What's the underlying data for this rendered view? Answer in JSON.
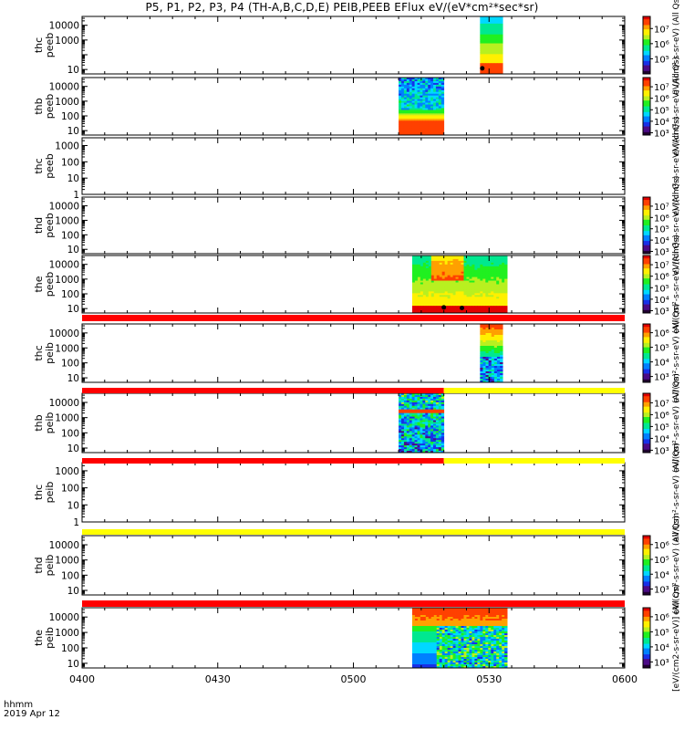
{
  "title": "P5, P1, P2, P3, P4 (TH-A,B,C,D,E) PEIB,PEEB EFlux eV/(eV*cm²*sec*sr)",
  "footer": {
    "time_label": "hhmm",
    "date_label": "2019 Apr 12"
  },
  "colors": {
    "colormap": [
      "#200030",
      "#4b0a86",
      "#1830e8",
      "#0080ff",
      "#00d8ff",
      "#00e890",
      "#20f020",
      "#b8f020",
      "#fff000",
      "#ffa000",
      "#ff4000",
      "#e00000"
    ],
    "flag_red": "#ff0000",
    "flag_yellow": "#ffff00"
  },
  "chart_data": {
    "type": "heatmap",
    "x_range": [
      "0400",
      "0600"
    ],
    "x_ticks": [
      "0400",
      "0430",
      "0500",
      "0530",
      "0600"
    ],
    "x_minutes": [
      0,
      120
    ],
    "y_scale": "log",
    "panels": [
      {
        "id": "thc_peeb",
        "label": [
          "thc",
          "peeb"
        ],
        "yrange": [
          5,
          40000
        ],
        "ticks": [
          "10",
          "1000",
          "10000"
        ],
        "tick_values": [
          10,
          1000,
          10000
        ],
        "colorbar": {
          "labels": [
            "10⁷",
            "10⁶",
            "10⁵"
          ],
          "label_exps": [
            7,
            6,
            5
          ],
          "exp_range": [
            4,
            7.8
          ]
        },
        "blocks": [
          {
            "t": [
              88,
              93
            ],
            "style": "electron_full"
          }
        ],
        "black_points": [
          {
            "t": 88.5,
            "y": 12
          }
        ]
      },
      {
        "id": "thb_peeb",
        "label": [
          "thb",
          "peeb"
        ],
        "yrange": [
          5,
          40000
        ],
        "ticks": [
          "10",
          "100",
          "1000",
          "10000"
        ],
        "tick_values": [
          10,
          100,
          1000,
          10000
        ],
        "colorbar": {
          "labels": [
            "10⁷",
            "10⁶",
            "10⁵",
            "10⁴",
            "10³"
          ],
          "label_exps": [
            7,
            6,
            5,
            4,
            3
          ],
          "exp_range": [
            2.8,
            7.8
          ]
        },
        "blocks": [
          {
            "t": [
              70,
              80
            ],
            "style": "electron_noisy"
          }
        ],
        "black_points": []
      },
      {
        "id": "thc_peeb_2",
        "label": [
          "thc",
          "peeb"
        ],
        "yrange": [
          1,
          3000
        ],
        "ticks": [
          "1",
          "10",
          "100",
          "1000"
        ],
        "tick_values": [
          1,
          10,
          100,
          1000
        ],
        "colorbar": null,
        "blocks": [],
        "black_points": []
      },
      {
        "id": "thd_peeb",
        "label": [
          "thd",
          "peeb"
        ],
        "yrange": [
          5,
          40000
        ],
        "ticks": [
          "10",
          "100",
          "1000",
          "10000"
        ],
        "tick_values": [
          10,
          100,
          1000,
          10000
        ],
        "colorbar": {
          "labels": [
            "10⁷",
            "10⁶",
            "10⁵",
            "10⁴",
            "10³"
          ],
          "label_exps": [
            7,
            6,
            5,
            4,
            3
          ],
          "exp_range": [
            2.8,
            7.8
          ]
        },
        "blocks": [],
        "black_points": []
      },
      {
        "id": "the_peeb",
        "label": [
          "the",
          "peeb"
        ],
        "yrange": [
          5,
          40000
        ],
        "ticks": [
          "10",
          "100",
          "1000",
          "10000"
        ],
        "tick_values": [
          10,
          100,
          1000,
          10000
        ],
        "colorbar": {
          "labels": [
            "10⁷",
            "10⁶",
            "10⁵",
            "10⁴",
            "10³"
          ],
          "label_exps": [
            7,
            6,
            5,
            4,
            3
          ],
          "exp_range": [
            2.8,
            7.8
          ]
        },
        "blocks": [
          {
            "t": [
              73,
              94
            ],
            "style": "electron_smooth"
          }
        ],
        "black_points": [
          {
            "t": 80,
            "y": 12
          },
          {
            "t": 84,
            "y": 11
          }
        ]
      },
      {
        "id": "thc_peib",
        "label": [
          "thc",
          "peib"
        ],
        "yrange": [
          5,
          40000
        ],
        "ticks": [
          "10",
          "100",
          "1000",
          "10000"
        ],
        "tick_values": [
          10,
          100,
          1000,
          10000
        ],
        "colorbar": {
          "labels": [
            "10⁶",
            "10⁵",
            "10⁴",
            "10³"
          ],
          "label_exps": [
            6,
            5,
            4,
            3
          ],
          "exp_range": [
            2.6,
            6.6
          ]
        },
        "blocks": [
          {
            "t": [
              88,
              93
            ],
            "style": "ion_full"
          }
        ],
        "black_points": []
      },
      {
        "id": "thb_peib",
        "label": [
          "thb",
          "peib"
        ],
        "yrange": [
          5,
          40000
        ],
        "ticks": [
          "10",
          "100",
          "1000",
          "10000"
        ],
        "tick_values": [
          10,
          100,
          1000,
          10000
        ],
        "colorbar": {
          "labels": [
            "10⁷",
            "10⁶",
            "10⁵",
            "10⁴",
            "10³"
          ],
          "label_exps": [
            7,
            6,
            5,
            4,
            3
          ],
          "exp_range": [
            2.8,
            7.8
          ]
        },
        "blocks": [
          {
            "t": [
              70,
              80
            ],
            "style": "ion_noisy"
          }
        ],
        "black_points": []
      },
      {
        "id": "thc_peib_2",
        "label": [
          "thc",
          "peib"
        ],
        "yrange": [
          1,
          3000
        ],
        "ticks": [
          "1",
          "10",
          "100",
          "1000"
        ],
        "tick_values": [
          1,
          10,
          100,
          1000
        ],
        "colorbar": null,
        "blocks": [],
        "black_points": []
      },
      {
        "id": "thd_peib",
        "label": [
          "thd",
          "peib"
        ],
        "yrange": [
          5,
          40000
        ],
        "ticks": [
          "10",
          "100",
          "1000",
          "10000"
        ],
        "tick_values": [
          10,
          100,
          1000,
          10000
        ],
        "colorbar": {
          "labels": [
            "10⁶",
            "10⁵",
            "10⁴",
            "10³"
          ],
          "label_exps": [
            6,
            5,
            4,
            3
          ],
          "exp_range": [
            2.6,
            6.6
          ]
        },
        "blocks": [],
        "black_points": []
      },
      {
        "id": "the_peib",
        "label": [
          "the",
          "peib"
        ],
        "yrange": [
          5,
          40000
        ],
        "ticks": [
          "10",
          "100",
          "1000",
          "10000"
        ],
        "tick_values": [
          10,
          100,
          1000,
          10000
        ],
        "colorbar": {
          "labels": [
            "10⁶",
            "10⁵",
            "10⁴",
            "10³"
          ],
          "label_exps": [
            6,
            5,
            4,
            3
          ],
          "exp_range": [
            2.6,
            6.6
          ]
        },
        "blocks": [
          {
            "t": [
              73,
              94
            ],
            "style": "ion_smooth"
          }
        ],
        "black_points": []
      }
    ],
    "flag_bars": [
      {
        "after_panel": 4,
        "segments": [
          {
            "t": [
              0,
              120
            ],
            "color": "red"
          }
        ]
      },
      {
        "after_panel": 5,
        "segments": [
          {
            "t": [
              0,
              80
            ],
            "color": "red"
          },
          {
            "t": [
              80,
              120
            ],
            "color": "yellow"
          }
        ]
      },
      {
        "after_panel": 6,
        "segments": [
          {
            "t": [
              0,
              80
            ],
            "color": "red"
          },
          {
            "t": [
              80,
              120
            ],
            "color": "yellow"
          }
        ]
      },
      {
        "after_panel": 7,
        "segments": [
          {
            "t": [
              0,
              120
            ],
            "color": "yellow"
          }
        ]
      },
      {
        "after_panel": 8,
        "segments": [
          {
            "t": [
              0,
              120
            ],
            "color": "red"
          }
        ]
      }
    ],
    "colorbar_titles": [
      "eV/(cm²-s-sr-eV) (All Qs)",
      "eV/(cm²-s-sr-eV) (All Qs)",
      "eV/(cm²-s-sr-eV) (All Qs)",
      "eV/(cm²-s-sr-eV) (All Qs)",
      "eV/(cm²-s-sr-eV) (All Qs)",
      "eV/(cm²-s-sr-eV) (All Qs)",
      "eV/(cm²-s-sr-eV) (All Qs)",
      "eV/(cm²-s-sr-eV) (All Qs)",
      "eV/(cm²-s-sr-eV) (All Qs)",
      "[eV/(cm2-s-sr-eV)] (All Qs)"
    ]
  }
}
